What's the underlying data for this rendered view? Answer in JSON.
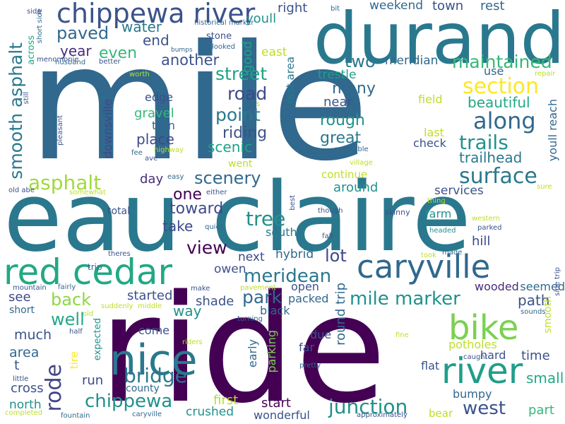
{
  "words": [
    {
      "text": "mile",
      "color": "#31688e"
    },
    {
      "text": "ride",
      "color": "#440154"
    },
    {
      "text": "eau claire",
      "color": "#2a788e"
    },
    {
      "text": "durand",
      "color": "#2a788e"
    },
    {
      "text": "red cedar",
      "color": "#22a884"
    },
    {
      "text": "caryville",
      "color": "#31688e"
    },
    {
      "text": "river",
      "color": "#1f9e89"
    },
    {
      "text": "nice",
      "color": "#2a788e"
    },
    {
      "text": "bike",
      "color": "#7ad151"
    },
    {
      "text": "chippewa river",
      "color": "#3b528b"
    },
    {
      "text": "along",
      "color": "#31688e"
    },
    {
      "text": "surface",
      "color": "#2a788e"
    },
    {
      "text": "section",
      "color": "#fde725"
    },
    {
      "text": "trails",
      "color": "#21918c"
    },
    {
      "text": "maintained",
      "color": "#35b779"
    },
    {
      "text": "bridge",
      "color": "#2a788e"
    },
    {
      "text": "chippewa",
      "color": "#21918c"
    },
    {
      "text": "junction",
      "color": "#21918c"
    },
    {
      "text": "meridean",
      "color": "#2a788e"
    },
    {
      "text": "mile marker",
      "color": "#21918c"
    },
    {
      "text": "west",
      "color": "#3b528b"
    },
    {
      "text": "rode",
      "color": "#414487"
    },
    {
      "text": "scenery",
      "color": "#31688e"
    },
    {
      "text": "asphalt",
      "color": "#a0da39"
    },
    {
      "text": "point",
      "color": "#2a788e"
    },
    {
      "text": "road",
      "color": "#3e4989"
    },
    {
      "text": "street",
      "color": "#1fa187"
    },
    {
      "text": "paved",
      "color": "#31688e"
    },
    {
      "text": "smooth asphalt",
      "color": "#2a788e"
    },
    {
      "text": "tree",
      "color": "#21918c"
    },
    {
      "text": "park",
      "color": "#31688e"
    },
    {
      "text": "view",
      "color": "#440154"
    },
    {
      "text": "well",
      "color": "#22a884"
    },
    {
      "text": "back",
      "color": "#8fd744"
    },
    {
      "text": "trailhead",
      "color": "#2a788e"
    },
    {
      "text": "two",
      "color": "#2a788e"
    },
    {
      "text": "lot",
      "color": "#3e4989"
    },
    {
      "text": "many",
      "color": "#31688e"
    },
    {
      "text": "beautiful",
      "color": "#22a884"
    },
    {
      "text": "rough",
      "color": "#21918c"
    },
    {
      "text": "great",
      "color": "#2a788e"
    },
    {
      "text": "riding",
      "color": "#3b528b"
    },
    {
      "text": "scenic",
      "color": "#1fa187"
    },
    {
      "text": "place",
      "color": "#3e4989"
    },
    {
      "text": "toward",
      "color": "#3e4989"
    },
    {
      "text": "one",
      "color": "#440154"
    },
    {
      "text": "take",
      "color": "#3e4989"
    },
    {
      "text": "another",
      "color": "#3b528b"
    },
    {
      "text": "even",
      "color": "#35b779"
    },
    {
      "text": "year",
      "color": "#472d7b"
    },
    {
      "text": "water",
      "color": "#2a788e"
    },
    {
      "text": "end",
      "color": "#3b528b"
    },
    {
      "text": "good",
      "color": "#1fa187"
    },
    {
      "text": "weekend",
      "color": "#31688e"
    },
    {
      "text": "town",
      "color": "#3b528b"
    },
    {
      "text": "rest",
      "color": "#31688e"
    },
    {
      "text": "right",
      "color": "#3b528b"
    },
    {
      "text": "youll",
      "color": "#21918c"
    },
    {
      "text": "east",
      "color": "#bddf26"
    },
    {
      "text": "meridian",
      "color": "#31688e"
    },
    {
      "text": "trestle",
      "color": "#1f9e89"
    },
    {
      "text": "near",
      "color": "#3b528b"
    },
    {
      "text": "rest area",
      "color": "#2a788e"
    },
    {
      "text": "gravel",
      "color": "#35b779"
    },
    {
      "text": "turn",
      "color": "#31688e"
    },
    {
      "text": "edge",
      "color": "#3b528b"
    },
    {
      "text": "downsville",
      "color": "#3e4989"
    },
    {
      "text": "day",
      "color": "#472d7b"
    },
    {
      "text": "around",
      "color": "#21918c"
    },
    {
      "text": "continue",
      "color": "#bddf26"
    },
    {
      "text": "services",
      "color": "#3b528b"
    },
    {
      "text": "field",
      "color": "#bddf26"
    },
    {
      "text": "check",
      "color": "#3b528b"
    },
    {
      "text": "last",
      "color": "#bddf26"
    },
    {
      "text": "use",
      "color": "#31688e"
    },
    {
      "text": "youll reach",
      "color": "#31688e"
    },
    {
      "text": "farm",
      "color": "#21918c"
    },
    {
      "text": "hill",
      "color": "#3e4989"
    },
    {
      "text": "south",
      "color": "#2a788e"
    },
    {
      "text": "hybrid",
      "color": "#31688e"
    },
    {
      "text": "next",
      "color": "#3e4989"
    },
    {
      "text": "owen",
      "color": "#3b528b"
    },
    {
      "text": "started",
      "color": "#3b528b"
    },
    {
      "text": "shade",
      "color": "#3b528b"
    },
    {
      "text": "see",
      "color": "#3e4989"
    },
    {
      "text": "much",
      "color": "#3b528b"
    },
    {
      "text": "area",
      "color": "#31688e"
    },
    {
      "text": "way",
      "color": "#21918c"
    },
    {
      "text": "come",
      "color": "#3b528b"
    },
    {
      "text": "open",
      "color": "#3b528b"
    },
    {
      "text": "packed",
      "color": "#31688e"
    },
    {
      "text": "black",
      "color": "#31688e"
    },
    {
      "text": "early",
      "color": "#31688e"
    },
    {
      "text": "round trip",
      "color": "#31688e"
    },
    {
      "text": "path",
      "color": "#3b528b"
    },
    {
      "text": "seemed",
      "color": "#31688e"
    },
    {
      "text": "wooded",
      "color": "#472d7b"
    },
    {
      "text": "time",
      "color": "#3b528b"
    },
    {
      "text": "hard",
      "color": "#3b528b"
    },
    {
      "text": "potholes",
      "color": "#bddf26"
    },
    {
      "text": "small",
      "color": "#22a884"
    },
    {
      "text": "part",
      "color": "#35b779"
    },
    {
      "text": "bumpy",
      "color": "#31688e"
    },
    {
      "text": "flat",
      "color": "#3b528b"
    },
    {
      "text": "due",
      "color": "#3b528b"
    },
    {
      "text": "far",
      "color": "#3b528b"
    },
    {
      "text": "parking",
      "color": "#7ad151"
    },
    {
      "text": "start",
      "color": "#440154"
    },
    {
      "text": "first",
      "color": "#b5de2b"
    },
    {
      "text": "crushed",
      "color": "#21918c"
    },
    {
      "text": "wonderful",
      "color": "#3b528b"
    },
    {
      "text": "run",
      "color": "#3e4989"
    },
    {
      "text": "county",
      "color": "#31688e"
    },
    {
      "text": "cross",
      "color": "#3b528b"
    },
    {
      "text": "north",
      "color": "#21918c"
    },
    {
      "text": "t",
      "color": "#3b528b"
    },
    {
      "text": "tire",
      "color": "#fde725"
    },
    {
      "text": "expected",
      "color": "#21918c"
    },
    {
      "text": "smooth",
      "color": "#bddf26"
    },
    {
      "text": "bear",
      "color": "#bddf26"
    },
    {
      "text": "total",
      "color": "#3b528b"
    },
    {
      "text": "short",
      "color": "#31688e"
    },
    {
      "text": "trip",
      "color": "#31688e"
    },
    {
      "text": "menomonie",
      "color": "#3b528b"
    },
    {
      "text": "husband",
      "color": "#31688e"
    },
    {
      "text": "better",
      "color": "#3b528b"
    },
    {
      "text": "worth",
      "color": "#bddf26"
    },
    {
      "text": "across",
      "color": "#22a884"
    },
    {
      "text": "short side",
      "color": "#31688e"
    },
    {
      "text": "side",
      "color": "#3b528b"
    },
    {
      "text": "bit",
      "color": "#31688e"
    },
    {
      "text": "historical marker",
      "color": "#31688e"
    },
    {
      "text": "stone",
      "color": "#3b528b"
    },
    {
      "text": "looked",
      "color": "#31688e"
    },
    {
      "text": "bumps",
      "color": "#31688e"
    },
    {
      "text": "still",
      "color": "#3b528b"
    },
    {
      "text": "pleasant",
      "color": "#3b528b"
    },
    {
      "text": "fee",
      "color": "#31688e"
    },
    {
      "text": "ave",
      "color": "#3b528b"
    },
    {
      "text": "highway",
      "color": "#bddf26"
    },
    {
      "text": "went",
      "color": "#bddf26"
    },
    {
      "text": "village",
      "color": "#bddf26"
    },
    {
      "text": "enjoyable",
      "color": "#31688e"
    },
    {
      "text": "easy",
      "color": "#31688e"
    },
    {
      "text": "old abe",
      "color": "#3b528b"
    },
    {
      "text": "somewhat",
      "color": "#bddf26"
    },
    {
      "text": "either",
      "color": "#3b528b"
    },
    {
      "text": "quiet",
      "color": "#31688e"
    },
    {
      "text": "best",
      "color": "#3b528b"
    },
    {
      "text": "though",
      "color": "#3b528b"
    },
    {
      "text": "skinny",
      "color": "#3b528b"
    },
    {
      "text": "thing",
      "color": "#bddf26"
    },
    {
      "text": "western",
      "color": "#bddf26"
    },
    {
      "text": "parked",
      "color": "#3b528b"
    },
    {
      "text": "headed",
      "color": "#21918c"
    },
    {
      "text": "sure",
      "color": "#bddf26"
    },
    {
      "text": "repair",
      "color": "#bddf26"
    },
    {
      "text": "fall",
      "color": "#3b528b"
    },
    {
      "text": "took",
      "color": "#bddf26"
    },
    {
      "text": "made",
      "color": "#31688e"
    },
    {
      "text": "theres",
      "color": "#3b528b"
    },
    {
      "text": "side trip",
      "color": "#3b528b"
    },
    {
      "text": "mountain",
      "color": "#3b528b"
    },
    {
      "text": "fairly",
      "color": "#31688e"
    },
    {
      "text": "make",
      "color": "#3b528b"
    },
    {
      "text": "pavement",
      "color": "#bddf26"
    },
    {
      "text": "sounds",
      "color": "#31688e"
    },
    {
      "text": "suddenly",
      "color": "#bddf26"
    },
    {
      "text": "middle",
      "color": "#bddf26"
    },
    {
      "text": "old",
      "color": "#bddf26"
    },
    {
      "text": "turning",
      "color": "#31688e"
    },
    {
      "text": "half",
      "color": "#3b528b"
    },
    {
      "text": "riders",
      "color": "#bddf26"
    },
    {
      "text": "fine",
      "color": "#bddf26"
    },
    {
      "text": "caught",
      "color": "#3b528b"
    },
    {
      "text": "little",
      "color": "#3b528b"
    },
    {
      "text": "pretty",
      "color": "#31688e"
    },
    {
      "text": "completed",
      "color": "#bddf26"
    },
    {
      "text": "fountain",
      "color": "#31688e"
    },
    {
      "text": "caryville",
      "color": "#31688e"
    },
    {
      "text": "approximately",
      "color": "#3b528b"
    },
    {
      "text": "s",
      "color": "#bddf26"
    }
  ]
}
